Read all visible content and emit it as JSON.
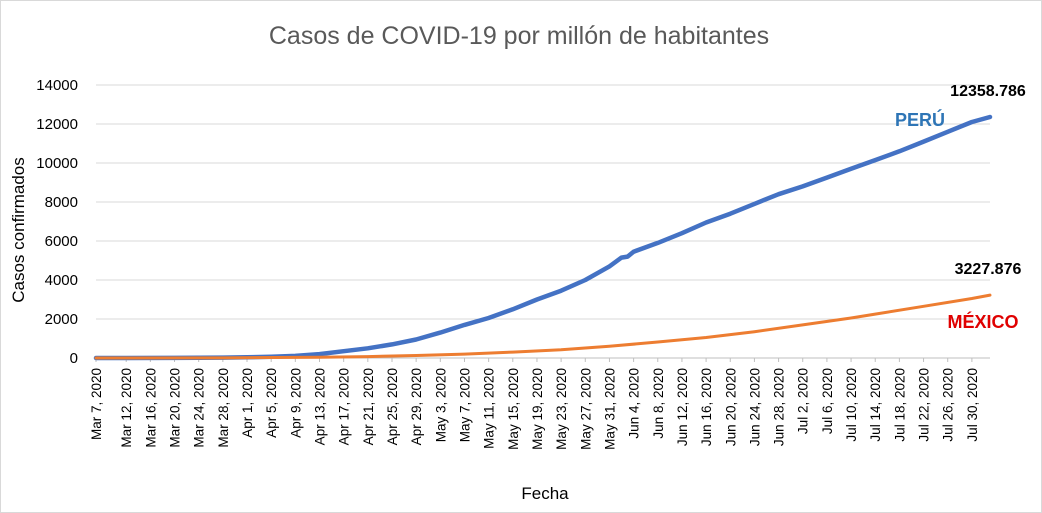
{
  "chart_data": {
    "type": "line",
    "title": "Casos de COVID-19 por millón de habitantes",
    "xlabel": "Fecha",
    "ylabel": "Casos confirmados",
    "ylim": [
      0,
      14000
    ],
    "yticks": [
      "0",
      "2000",
      "4000",
      "6000",
      "8000",
      "10000",
      "12000",
      "14000"
    ],
    "x_start": "2020-03-07",
    "x_end": "2020-08-02",
    "x_tick_labels": [
      "Mar 7, 2020",
      "Mar 12, 2020",
      "Mar 16, 2020",
      "Mar 20, 2020",
      "Mar 24, 2020",
      "Mar 28, 2020",
      "Apr 1, 2020",
      "Apr 5, 2020",
      "Apr 9, 2020",
      "Apr 13, 2020",
      "Apr 17, 2020",
      "Apr 21, 2020",
      "Apr 25, 2020",
      "Apr 29, 2020",
      "May 3, 2020",
      "May 7, 2020",
      "May 11, 2020",
      "May 15, 2020",
      "May 19, 2020",
      "May 23, 2020",
      "May 27, 2020",
      "May 31, 2020",
      "Jun 4, 2020",
      "Jun 8, 2020",
      "Jun 12, 2020",
      "Jun 16, 2020",
      "Jun 20, 2020",
      "Jun 24, 2020",
      "Jun 28, 2020",
      "Jul 2, 2020",
      "Jul 6, 2020",
      "Jul 10, 2020",
      "Jul 14, 2020",
      "Jul 18, 2020",
      "Jul 22, 2020",
      "Jul 26, 2020",
      "Jul 30, 2020"
    ],
    "x_tick_dates": [
      "2020-03-07",
      "2020-03-12",
      "2020-03-16",
      "2020-03-20",
      "2020-03-24",
      "2020-03-28",
      "2020-04-01",
      "2020-04-05",
      "2020-04-09",
      "2020-04-13",
      "2020-04-17",
      "2020-04-21",
      "2020-04-25",
      "2020-04-29",
      "2020-05-03",
      "2020-05-07",
      "2020-05-11",
      "2020-05-15",
      "2020-05-19",
      "2020-05-23",
      "2020-05-27",
      "2020-05-31",
      "2020-06-04",
      "2020-06-08",
      "2020-06-12",
      "2020-06-16",
      "2020-06-20",
      "2020-06-24",
      "2020-06-28",
      "2020-07-02",
      "2020-07-06",
      "2020-07-10",
      "2020-07-14",
      "2020-07-18",
      "2020-07-22",
      "2020-07-26",
      "2020-07-30"
    ],
    "grid": true,
    "series": [
      {
        "name": "PERÚ",
        "color": "#4472c4",
        "end_label": "12358.786",
        "points": [
          [
            "2020-03-07",
            0
          ],
          [
            "2020-03-20",
            5
          ],
          [
            "2020-03-28",
            20
          ],
          [
            "2020-04-01",
            40
          ],
          [
            "2020-04-05",
            60
          ],
          [
            "2020-04-09",
            110
          ],
          [
            "2020-04-13",
            200
          ],
          [
            "2020-04-17",
            350
          ],
          [
            "2020-04-21",
            500
          ],
          [
            "2020-04-25",
            700
          ],
          [
            "2020-04-29",
            950
          ],
          [
            "2020-05-03",
            1300
          ],
          [
            "2020-05-07",
            1700
          ],
          [
            "2020-05-11",
            2050
          ],
          [
            "2020-05-15",
            2500
          ],
          [
            "2020-05-19",
            3000
          ],
          [
            "2020-05-23",
            3450
          ],
          [
            "2020-05-27",
            4000
          ],
          [
            "2020-05-31",
            4700
          ],
          [
            "2020-06-02",
            5150
          ],
          [
            "2020-06-03",
            5200
          ],
          [
            "2020-06-04",
            5450
          ],
          [
            "2020-06-08",
            5900
          ],
          [
            "2020-06-12",
            6400
          ],
          [
            "2020-06-16",
            6950
          ],
          [
            "2020-06-20",
            7400
          ],
          [
            "2020-06-24",
            7900
          ],
          [
            "2020-06-28",
            8400
          ],
          [
            "2020-07-02",
            8800
          ],
          [
            "2020-07-06",
            9250
          ],
          [
            "2020-07-10",
            9700
          ],
          [
            "2020-07-14",
            10150
          ],
          [
            "2020-07-18",
            10600
          ],
          [
            "2020-07-22",
            11100
          ],
          [
            "2020-07-26",
            11600
          ],
          [
            "2020-07-30",
            12100
          ],
          [
            "2020-08-02",
            12358.786
          ]
        ]
      },
      {
        "name": "MÉXICO",
        "color": "#ed7d31",
        "end_label": "3227.876",
        "points": [
          [
            "2020-03-07",
            0
          ],
          [
            "2020-03-28",
            5
          ],
          [
            "2020-04-09",
            30
          ],
          [
            "2020-04-13",
            40
          ],
          [
            "2020-04-21",
            70
          ],
          [
            "2020-04-29",
            130
          ],
          [
            "2020-05-07",
            200
          ],
          [
            "2020-05-15",
            300
          ],
          [
            "2020-05-23",
            420
          ],
          [
            "2020-05-31",
            600
          ],
          [
            "2020-06-08",
            820
          ],
          [
            "2020-06-16",
            1050
          ],
          [
            "2020-06-24",
            1350
          ],
          [
            "2020-07-02",
            1700
          ],
          [
            "2020-07-10",
            2050
          ],
          [
            "2020-07-14",
            2250
          ],
          [
            "2020-07-22",
            2650
          ],
          [
            "2020-07-30",
            3050
          ],
          [
            "2020-08-02",
            3227.876
          ]
        ]
      }
    ]
  }
}
